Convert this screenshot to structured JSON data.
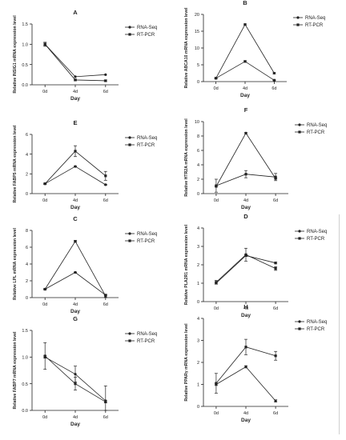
{
  "chart_data": [
    {
      "type": "line",
      "panel_label": "A",
      "ylabel": "Relative INSIG1 mRNA expression level",
      "xlabel": "Day",
      "categories": [
        "0d",
        "4d",
        "6d"
      ],
      "ylim": [
        0.0,
        1.5
      ],
      "yticks": [
        "0.0",
        "0.5",
        "1.0",
        "1.5"
      ],
      "series": [
        {
          "name": "RNA-Seq",
          "values": [
            1.0,
            0.2,
            0.25
          ],
          "errors": [
            0.03,
            0.0,
            0.0
          ]
        },
        {
          "name": "RT-PCR",
          "values": [
            1.0,
            0.12,
            0.1
          ],
          "errors": [
            0.05,
            0.02,
            0.02
          ]
        }
      ],
      "legend": "top-right"
    },
    {
      "type": "line",
      "panel_label": "B",
      "ylabel": "Relative ABCA10 mRNA expression level",
      "xlabel": "Day",
      "categories": [
        "0d",
        "4d",
        "6d"
      ],
      "ylim": [
        0,
        20
      ],
      "yticks": [
        "0",
        "5",
        "10",
        "15",
        "20"
      ],
      "series": [
        {
          "name": "RNA-Seq",
          "values": [
            1.0,
            17.0,
            2.5
          ],
          "errors": [
            0.2,
            0.2,
            0.2
          ]
        },
        {
          "name": "RT-PCR",
          "values": [
            1.0,
            6.0,
            0.4
          ],
          "errors": [
            0.2,
            0.2,
            0.1
          ]
        }
      ],
      "legend": "top-right"
    },
    {
      "type": "line",
      "panel_label": "E",
      "ylabel": "Relative FABP5 mRNA expression level",
      "xlabel": "Day",
      "categories": [
        "0d",
        "4d",
        "6d"
      ],
      "ylim": [
        0,
        6
      ],
      "yticks": [
        "0",
        "2",
        "4",
        "6"
      ],
      "series": [
        {
          "name": "RNA-Seq",
          "values": [
            1.0,
            2.75,
            0.9
          ],
          "errors": [
            0.05,
            0.05,
            0.05
          ]
        },
        {
          "name": "RT-PCR",
          "values": [
            1.0,
            4.3,
            1.8
          ],
          "errors": [
            0.05,
            0.55,
            0.45
          ]
        }
      ],
      "legend": "top-right"
    },
    {
      "type": "line",
      "panel_label": "F",
      "ylabel": "Relative HTR2A mRNA expression level",
      "xlabel": "Day",
      "categories": [
        "0d",
        "4d",
        "6d"
      ],
      "ylim": [
        0,
        10
      ],
      "yticks": [
        "0",
        "2",
        "4",
        "6",
        "8",
        "10"
      ],
      "series": [
        {
          "name": "RNA-Seq",
          "values": [
            1.0,
            8.4,
            2.1
          ],
          "errors": [
            0.1,
            0.1,
            0.1
          ]
        },
        {
          "name": "RT-PCR",
          "values": [
            1.1,
            2.7,
            2.3
          ],
          "errors": [
            0.9,
            0.5,
            0.5
          ]
        }
      ],
      "legend": "top-right"
    },
    {
      "type": "line",
      "panel_label": "C",
      "ylabel": "Relative LPL mRNA expression level",
      "xlabel": "Day",
      "categories": [
        "0d",
        "4d",
        "6d"
      ],
      "ylim": [
        0,
        8
      ],
      "yticks": [
        "0",
        "2",
        "4",
        "6",
        "8"
      ],
      "series": [
        {
          "name": "RNA-Seq",
          "values": [
            1.0,
            3.0,
            0.3
          ],
          "errors": [
            0.05,
            0.05,
            0.05
          ]
        },
        {
          "name": "RT-PCR",
          "values": [
            1.0,
            6.7,
            0.2
          ],
          "errors": [
            0.05,
            0.1,
            0.2
          ]
        }
      ],
      "legend": "top-right"
    },
    {
      "type": "line",
      "panel_label": "D",
      "ylabel": "Relative PLA2R1 mRNA expression level",
      "xlabel": "Day",
      "categories": [
        "0d",
        "4d",
        "6d"
      ],
      "ylim": [
        0,
        4
      ],
      "yticks": [
        "0",
        "1",
        "2",
        "3",
        "4"
      ],
      "series": [
        {
          "name": "RNA-Seq",
          "values": [
            1.0,
            2.5,
            2.1
          ],
          "errors": [
            0.05,
            0.05,
            0.05
          ]
        },
        {
          "name": "RT-PCR",
          "values": [
            1.05,
            2.55,
            1.8
          ],
          "errors": [
            0.1,
            0.35,
            0.1
          ]
        }
      ],
      "legend": "top-right"
    },
    {
      "type": "line",
      "panel_label": "G",
      "ylabel": "Relative FABP7 mRNA expression level",
      "xlabel": "Day",
      "categories": [
        "0d",
        "4d",
        "6d"
      ],
      "ylim": [
        0.0,
        1.5
      ],
      "yticks": [
        "0.0",
        "0.5",
        "1.0",
        "1.5"
      ],
      "series": [
        {
          "name": "RNA-Seq",
          "values": [
            1.0,
            0.68,
            0.18
          ],
          "errors": [
            0.02,
            0.15,
            0.28
          ]
        },
        {
          "name": "RT-PCR",
          "values": [
            1.02,
            0.5,
            0.16
          ],
          "errors": [
            0.25,
            0.12,
            0.02
          ]
        }
      ],
      "legend": "top-right"
    },
    {
      "type": "line",
      "panel_label": "H",
      "ylabel": "Relative PPARγ mRNA expression level",
      "xlabel": "Day",
      "categories": [
        "0d",
        "4d",
        "6d"
      ],
      "ylim": [
        0,
        4
      ],
      "yticks": [
        "0",
        "1",
        "2",
        "3",
        "4"
      ],
      "series": [
        {
          "name": "RNA-Seq",
          "values": [
            1.0,
            1.8,
            0.25
          ],
          "errors": [
            0.05,
            0.05,
            0.05
          ]
        },
        {
          "name": "RT-PCR",
          "values": [
            1.05,
            2.7,
            2.3
          ],
          "errors": [
            0.45,
            0.35,
            0.2
          ]
        }
      ],
      "legend": "top-right"
    }
  ]
}
